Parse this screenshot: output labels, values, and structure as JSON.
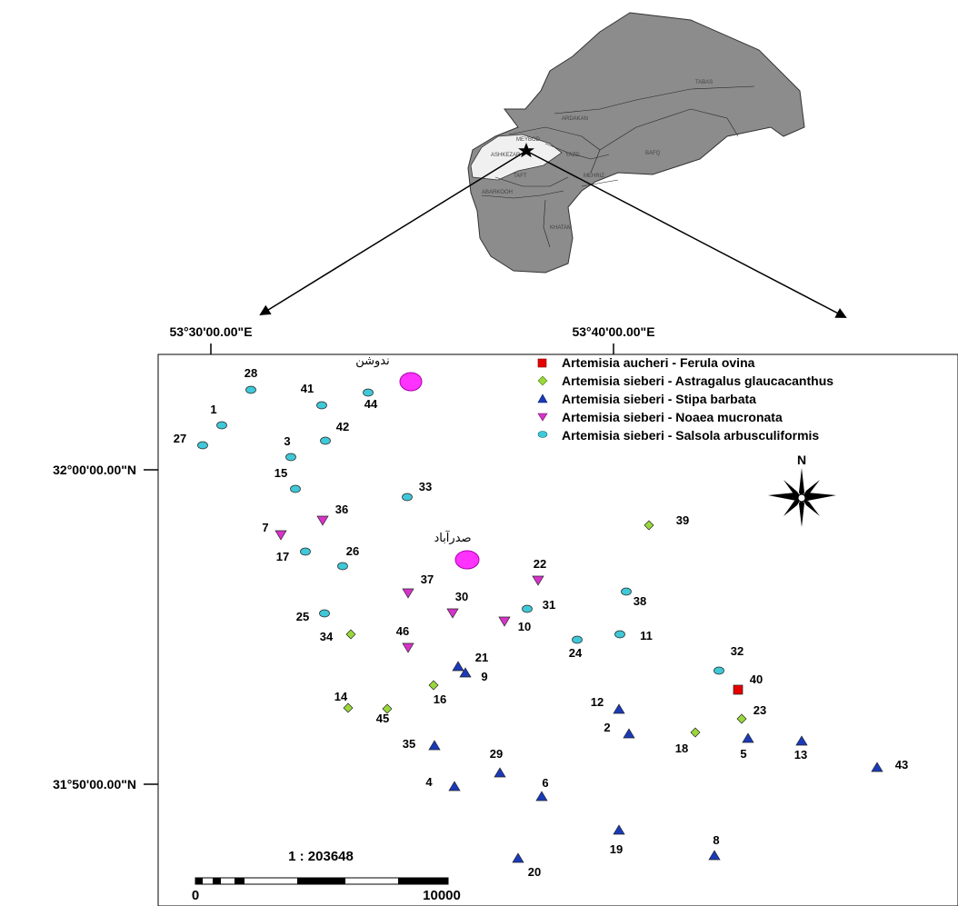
{
  "coordinates": {
    "lon_labels": [
      "53°30'00.00\"E",
      "53°40'00.00\"E"
    ],
    "lat_labels": [
      "32°00'00.00\"N",
      "31°50'00.00\"N"
    ]
  },
  "towns": [
    "ندوشن",
    "صدرآباد"
  ],
  "district_labels": [
    "TABAS",
    "ARDAKAN",
    "MEYBOD",
    "ASHKEZAR",
    "YAZD",
    "BAFQ",
    "TAFT",
    "ABARKOOH",
    "MEHRIZ",
    "KHATAM"
  ],
  "legend": [
    {
      "label": "Artemisia aucheri - Ferula ovina",
      "symbol": "square",
      "color": "#e60000"
    },
    {
      "label": "Artemisia sieberi - Astragalus glaucacanthus",
      "symbol": "diamond",
      "color": "#9ad83a"
    },
    {
      "label": "Artemisia sieberi - Stipa barbata",
      "symbol": "triangle-up",
      "color": "#1a3ab8"
    },
    {
      "label": "Artemisia sieberi - Noaea mucronata",
      "symbol": "triangle-down",
      "color": "#d633c9"
    },
    {
      "label": "Artemisia sieberi - Salsola arbusculiformis",
      "symbol": "ellipse",
      "color": "#3fc8d8"
    }
  ],
  "north_label": "N",
  "scale": {
    "ratio": "1 : 203648",
    "min": "0",
    "max": "10000"
  },
  "sites": [
    {
      "id": "28",
      "type": 4
    },
    {
      "id": "41",
      "type": 4
    },
    {
      "id": "44",
      "type": 4
    },
    {
      "id": "1",
      "type": 4
    },
    {
      "id": "27",
      "type": 4
    },
    {
      "id": "3",
      "type": 4
    },
    {
      "id": "42",
      "type": 4
    },
    {
      "id": "15",
      "type": 4
    },
    {
      "id": "33",
      "type": 4
    },
    {
      "id": "36",
      "type": 3
    },
    {
      "id": "7",
      "type": 3
    },
    {
      "id": "39",
      "type": 1
    },
    {
      "id": "17",
      "type": 4
    },
    {
      "id": "26",
      "type": 4
    },
    {
      "id": "22",
      "type": 3
    },
    {
      "id": "37",
      "type": 3
    },
    {
      "id": "38",
      "type": 4
    },
    {
      "id": "30",
      "type": 3
    },
    {
      "id": "31",
      "type": 4
    },
    {
      "id": "25",
      "type": 4
    },
    {
      "id": "10",
      "type": 3
    },
    {
      "id": "34",
      "type": 1
    },
    {
      "id": "24",
      "type": 4
    },
    {
      "id": "11",
      "type": 4
    },
    {
      "id": "46",
      "type": 3
    },
    {
      "id": "32",
      "type": 4
    },
    {
      "id": "21",
      "type": 2
    },
    {
      "id": "9",
      "type": 2
    },
    {
      "id": "40",
      "type": 0
    },
    {
      "id": "16",
      "type": 1
    },
    {
      "id": "14",
      "type": 1
    },
    {
      "id": "45",
      "type": 1
    },
    {
      "id": "12",
      "type": 2
    },
    {
      "id": "23",
      "type": 1
    },
    {
      "id": "2",
      "type": 2
    },
    {
      "id": "18",
      "type": 1
    },
    {
      "id": "5",
      "type": 2
    },
    {
      "id": "13",
      "type": 2
    },
    {
      "id": "35",
      "type": 2
    },
    {
      "id": "29",
      "type": 2
    },
    {
      "id": "43",
      "type": 2
    },
    {
      "id": "4",
      "type": 2
    },
    {
      "id": "6",
      "type": 2
    },
    {
      "id": "19",
      "type": 2
    },
    {
      "id": "8",
      "type": 2
    },
    {
      "id": "20",
      "type": 2
    }
  ]
}
